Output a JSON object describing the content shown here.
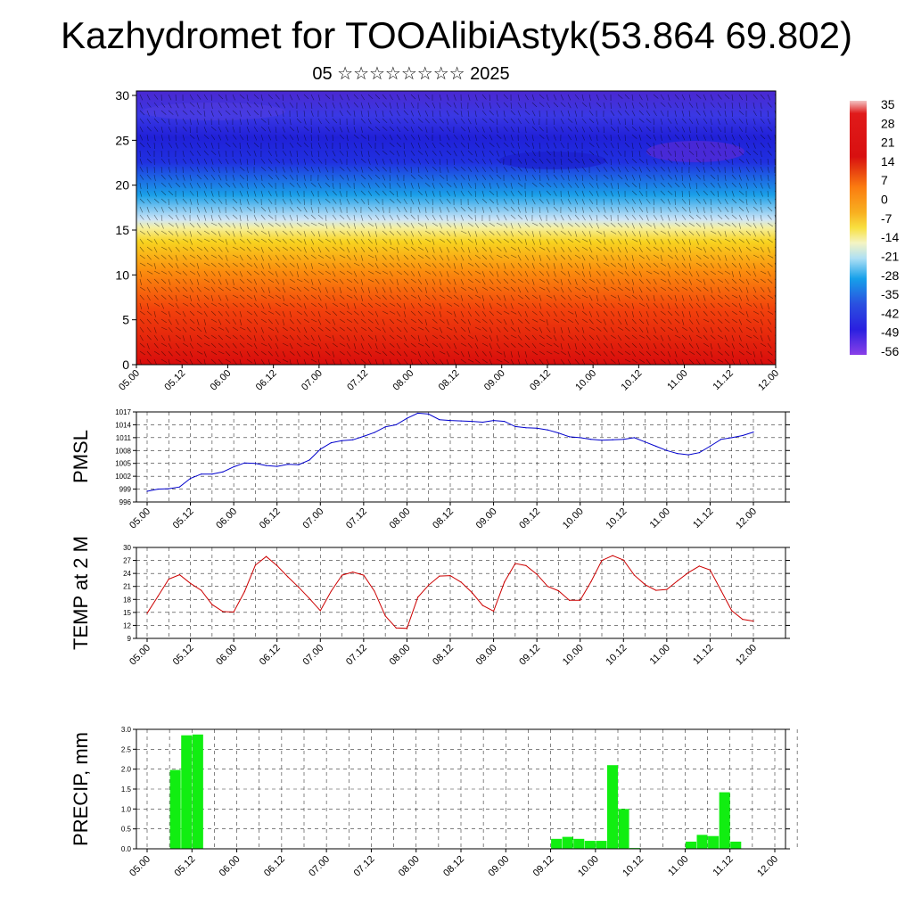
{
  "header": {
    "title": "Kazhydromet for TOOAlibiAstyk(53.864 69.802)",
    "subtitle": "05 ☆☆☆☆☆☆☆☆ 2025"
  },
  "chart_data": [
    {
      "type": "heatmap",
      "name": "temperature-wind cross-section",
      "x_ticks": [
        "05.00",
        "05.12",
        "06.00",
        "06.12",
        "07.00",
        "07.12",
        "08.00",
        "08.12",
        "09.00",
        "09.12",
        "10.00",
        "10.12",
        "11.00",
        "11.12",
        "12.00"
      ],
      "y_ticks": [
        0,
        5,
        10,
        15,
        20,
        25,
        30
      ],
      "ylim": [
        0,
        30.5
      ],
      "colorbar": {
        "labels": [
          "35",
          "28",
          "21",
          "14",
          "7",
          "0",
          "-7",
          "-14",
          "-21",
          "-28",
          "-35",
          "-42",
          "-49",
          "-56"
        ],
        "range": [
          -60,
          38
        ]
      },
      "colors": {
        "hot": "#d80c0c",
        "warm": "#fb8c0e",
        "mild": "#f8d420",
        "cool": "#cfe5f7",
        "cold": "#1aa0e8",
        "frozen": "#2030e0",
        "deep": "#4a1ad0"
      },
      "wind_barbs": true
    },
    {
      "type": "line",
      "ylabel": "PMSL",
      "x_ticks": [
        "05.00",
        "05.12",
        "06.00",
        "06.12",
        "07.00",
        "07.12",
        "08.00",
        "08.12",
        "09.00",
        "09.12",
        "10.00",
        "10.12",
        "11.00",
        "11.12",
        "12.00"
      ],
      "y_ticks": [
        "996",
        "999",
        "1002",
        "1005",
        "1008",
        "1011",
        "1014",
        "1017"
      ],
      "ylim": [
        996,
        1017
      ],
      "grid": true,
      "color": "#0000cc",
      "x": [
        0,
        3,
        6,
        9,
        12,
        15,
        18,
        21,
        24,
        27,
        30,
        33,
        36,
        39,
        42,
        45,
        48,
        51,
        54,
        57,
        60,
        63,
        66,
        69,
        72,
        75,
        78,
        81,
        84,
        87,
        90,
        93,
        96,
        99,
        102,
        105,
        108,
        111,
        114,
        117,
        120,
        123,
        126,
        129,
        132,
        135,
        138,
        141,
        144,
        147,
        150,
        153,
        156,
        159,
        162,
        165,
        168
      ],
      "values": [
        998.5,
        999,
        999.1,
        999.5,
        1001.5,
        1002.5,
        1002.5,
        1003,
        1004.2,
        1005.1,
        1005,
        1004.5,
        1004.3,
        1004.8,
        1004.7,
        1005.8,
        1008.3,
        1009.8,
        1010.3,
        1010.5,
        1011.3,
        1012.2,
        1013.5,
        1014,
        1015.5,
        1016.7,
        1016.5,
        1015.2,
        1015,
        1014.9,
        1014.8,
        1014.6,
        1015,
        1014.8,
        1013.6,
        1013.3,
        1013.2,
        1012.8,
        1012.1,
        1011.2,
        1011,
        1010.6,
        1010.4,
        1010.5,
        1010.6,
        1011,
        1010,
        1009,
        1008,
        1007.3,
        1007,
        1007.5,
        1009,
        1010.6,
        1011,
        1011.5,
        1012.3
      ]
    },
    {
      "type": "line",
      "ylabel": "TEMP at 2 M",
      "x_ticks": [
        "05.00",
        "05.12",
        "06.00",
        "06.12",
        "07.00",
        "07.12",
        "08.00",
        "08.12",
        "09.00",
        "09.12",
        "10.00",
        "10.12",
        "11.00",
        "11.12",
        "12.00"
      ],
      "y_ticks": [
        "9",
        "12",
        "15",
        "18",
        "21",
        "24",
        "27",
        "30"
      ],
      "ylim": [
        9,
        30
      ],
      "grid": true,
      "color": "#cc0000",
      "x": [
        0,
        3,
        6,
        9,
        12,
        15,
        18,
        21,
        24,
        27,
        30,
        33,
        36,
        39,
        42,
        45,
        48,
        51,
        54,
        57,
        60,
        63,
        66,
        69,
        72,
        75,
        78,
        81,
        84,
        87,
        90,
        93,
        96,
        99,
        102,
        105,
        108,
        111,
        114,
        117,
        120,
        123,
        126,
        129,
        132,
        135,
        138,
        141,
        144,
        147,
        150,
        153,
        156,
        159,
        162,
        165,
        168
      ],
      "values": [
        14.8,
        18.7,
        22.7,
        23.7,
        21.7,
        20.1,
        16.8,
        15.2,
        15.1,
        19.8,
        25.9,
        27.9,
        25.8,
        23.2,
        20.8,
        18.2,
        15.4,
        19.9,
        23.6,
        24.3,
        23.6,
        19.9,
        14.2,
        11.4,
        11.3,
        18.5,
        21.3,
        23.4,
        23.5,
        22,
        19.6,
        16.6,
        15.3,
        22,
        26.3,
        25.8,
        23.8,
        21,
        20,
        17.8,
        17.8,
        22.1,
        27,
        28.1,
        27.1,
        23.6,
        21.4,
        20.1,
        20.3,
        22.3,
        24.2,
        25.7,
        24.8,
        20.1,
        15.4,
        13.4,
        13
      ]
    },
    {
      "type": "bar",
      "ylabel": "PRECIP, mm",
      "x_ticks": [
        "05.00",
        "05.12",
        "06.00",
        "06.12",
        "07.00",
        "07.12",
        "08.00",
        "08.12",
        "09.00",
        "09.12",
        "10.00",
        "10.12",
        "11.00",
        "11.12",
        "12.00"
      ],
      "y_ticks": [
        "0.0",
        "0.5",
        "1.0",
        "1.5",
        "2.0",
        "2.5",
        "3.0"
      ],
      "ylim": [
        0,
        3.0
      ],
      "grid": true,
      "color": "#11ee11",
      "x": [
        6,
        9,
        12,
        15,
        39,
        108,
        111,
        114,
        117,
        120,
        123,
        126,
        129,
        144,
        147,
        150,
        153,
        156
      ],
      "values": [
        1.98,
        2.85,
        2.87,
        0.0,
        0.01,
        0.25,
        0.3,
        0.25,
        0.2,
        0.2,
        2.1,
        1.0,
        0.02,
        0.18,
        0.35,
        0.32,
        1.42,
        0.18
      ]
    }
  ]
}
